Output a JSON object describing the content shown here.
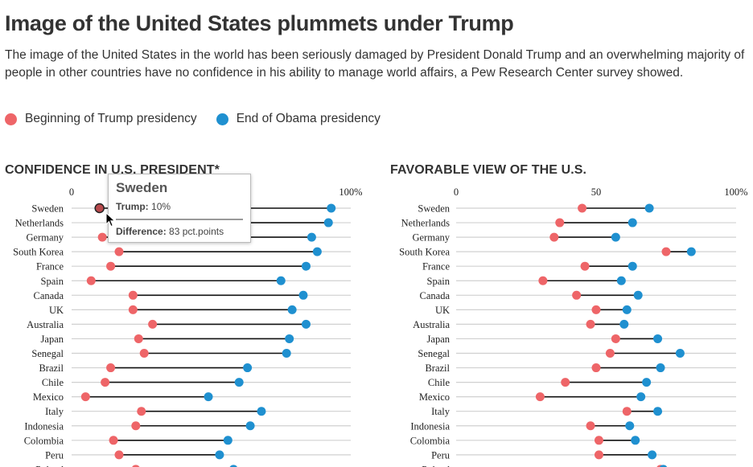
{
  "header": {
    "title": "Image of the United States plummets under Trump",
    "subtitle": "The image of the United States in the world has been seriously damaged by President Donald Trump and an overwhelming majority of people in other countries have no confidence in his ability to manage world affairs, a Pew Research Center survey showed."
  },
  "legend": {
    "trump_label": "Beginning of Trump presidency",
    "obama_label": "End of Obama presidency",
    "trump_color": "#ee6568",
    "obama_color": "#1f90d0"
  },
  "tooltip": {
    "country": "Sweden",
    "trump_label": "Trump:",
    "trump_value": "10%",
    "diff_label": "Difference:",
    "diff_value": "83 pct.points"
  },
  "chart_data": [
    {
      "type": "dumbbell",
      "title": "CONFIDENCE IN U.S. PRESIDENT*",
      "xlim": [
        0,
        100
      ],
      "ticks": [
        "0",
        "50",
        "100%"
      ],
      "grid": true,
      "categories": [
        "Sweden",
        "Netherlands",
        "Germany",
        "South Korea",
        "France",
        "Spain",
        "Canada",
        "UK",
        "Australia",
        "Japan",
        "Senegal",
        "Brazil",
        "Chile",
        "Mexico",
        "Italy",
        "Indonesia",
        "Colombia",
        "Peru",
        "Poland"
      ],
      "series": [
        {
          "name": "Beginning of Trump presidency",
          "values": [
            10,
            17,
            11,
            17,
            14,
            7,
            22,
            22,
            29,
            24,
            26,
            14,
            12,
            5,
            25,
            23,
            15,
            17,
            23
          ]
        },
        {
          "name": "End of Obama presidency",
          "values": [
            93,
            92,
            86,
            88,
            84,
            75,
            83,
            79,
            84,
            78,
            77,
            63,
            60,
            49,
            68,
            64,
            56,
            53,
            58
          ]
        }
      ]
    },
    {
      "type": "dumbbell",
      "title": "FAVORABLE VIEW OF THE U.S.",
      "xlim": [
        0,
        100
      ],
      "ticks": [
        "0",
        "50",
        "100%"
      ],
      "grid": true,
      "categories": [
        "Sweden",
        "Netherlands",
        "Germany",
        "South Korea",
        "France",
        "Spain",
        "Canada",
        "UK",
        "Australia",
        "Japan",
        "Senegal",
        "Brazil",
        "Chile",
        "Mexico",
        "Italy",
        "Indonesia",
        "Colombia",
        "Peru",
        "Poland"
      ],
      "series": [
        {
          "name": "Beginning of Trump presidency",
          "values": [
            45,
            37,
            35,
            75,
            46,
            31,
            43,
            50,
            48,
            57,
            55,
            50,
            39,
            30,
            61,
            48,
            51,
            51,
            73
          ]
        },
        {
          "name": "End of Obama presidency",
          "values": [
            69,
            63,
            57,
            84,
            63,
            59,
            65,
            61,
            60,
            72,
            80,
            73,
            68,
            66,
            72,
            62,
            64,
            70,
            74
          ]
        }
      ]
    }
  ]
}
